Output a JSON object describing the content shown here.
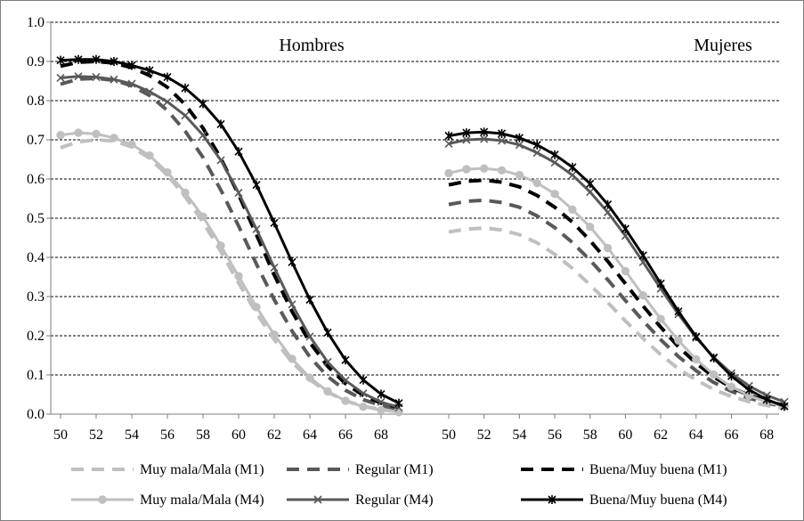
{
  "chart_data": {
    "type": "line",
    "ylim": [
      0,
      1.0
    ],
    "yticks": [
      "0.0",
      "0.1",
      "0.2",
      "0.3",
      "0.4",
      "0.5",
      "0.6",
      "0.7",
      "0.8",
      "0.9",
      "1.0"
    ],
    "grid": "horizontal-dashed",
    "legend_position": "bottom",
    "panels": [
      {
        "title": "Hombres",
        "xlim": [
          50,
          69
        ],
        "xticks": [
          "50",
          "52",
          "54",
          "56",
          "58",
          "60",
          "62",
          "64",
          "66",
          "68"
        ],
        "series": [
          {
            "name": "Muy mala/Mala (M1)",
            "color": "#bfbfbf",
            "style": "dashed",
            "marker": "none",
            "x": [
              50,
              51,
              52,
              53,
              54,
              55,
              56,
              57,
              58,
              59,
              60,
              61,
              62,
              63,
              64,
              65,
              66,
              67,
              68,
              69
            ],
            "y": [
              0.68,
              0.695,
              0.7,
              0.697,
              0.682,
              0.653,
              0.61,
              0.555,
              0.49,
              0.415,
              0.335,
              0.258,
              0.19,
              0.133,
              0.088,
              0.056,
              0.034,
              0.02,
              0.012,
              0.007
            ]
          },
          {
            "name": "Regular (M1)",
            "color": "#595959",
            "style": "dashed",
            "marker": "none",
            "x": [
              50,
              51,
              52,
              53,
              54,
              55,
              56,
              57,
              58,
              59,
              60,
              61,
              62,
              63,
              64,
              65,
              66,
              67,
              68,
              69
            ],
            "y": [
              0.842,
              0.855,
              0.857,
              0.852,
              0.838,
              0.813,
              0.775,
              0.722,
              0.655,
              0.572,
              0.48,
              0.383,
              0.292,
              0.212,
              0.146,
              0.096,
              0.061,
              0.037,
              0.022,
              0.013
            ]
          },
          {
            "name": "Buena/Muy buena (M1)",
            "color": "#000000",
            "style": "dashed",
            "marker": "none",
            "x": [
              50,
              51,
              52,
              53,
              54,
              55,
              56,
              57,
              58,
              59,
              60,
              61,
              62,
              63,
              64,
              65,
              66,
              67,
              68,
              69
            ],
            "y": [
              0.888,
              0.898,
              0.9,
              0.896,
              0.884,
              0.864,
              0.834,
              0.79,
              0.73,
              0.653,
              0.56,
              0.458,
              0.355,
              0.262,
              0.183,
              0.122,
              0.078,
              0.048,
              0.028,
              0.017
            ]
          },
          {
            "name": "Muy mala/Mala (M4)",
            "color": "#bfbfbf",
            "style": "solid",
            "marker": "circle",
            "x": [
              50,
              51,
              52,
              53,
              54,
              55,
              56,
              57,
              58,
              59,
              60,
              61,
              62,
              63,
              64,
              65,
              66,
              67,
              68,
              69
            ],
            "y": [
              0.712,
              0.718,
              0.715,
              0.705,
              0.688,
              0.66,
              0.617,
              0.565,
              0.504,
              0.43,
              0.352,
              0.273,
              0.203,
              0.141,
              0.093,
              0.058,
              0.034,
              0.019,
              0.01,
              0.005
            ]
          },
          {
            "name": "Regular (M4)",
            "color": "#595959",
            "style": "solid",
            "marker": "x",
            "x": [
              50,
              51,
              52,
              53,
              54,
              55,
              56,
              57,
              58,
              59,
              60,
              61,
              62,
              63,
              64,
              65,
              66,
              67,
              68,
              69
            ],
            "y": [
              0.858,
              0.862,
              0.86,
              0.854,
              0.843,
              0.823,
              0.797,
              0.762,
              0.712,
              0.648,
              0.565,
              0.472,
              0.374,
              0.28,
              0.198,
              0.133,
              0.086,
              0.053,
              0.031,
              0.017
            ]
          },
          {
            "name": "Buena/Muy buena (M4)",
            "color": "#000000",
            "style": "solid",
            "marker": "asterisk",
            "x": [
              50,
              51,
              52,
              53,
              54,
              55,
              56,
              57,
              58,
              59,
              60,
              61,
              62,
              63,
              64,
              65,
              66,
              67,
              68,
              69
            ],
            "y": [
              0.903,
              0.905,
              0.905,
              0.9,
              0.89,
              0.877,
              0.86,
              0.832,
              0.792,
              0.74,
              0.67,
              0.585,
              0.488,
              0.388,
              0.292,
              0.208,
              0.138,
              0.087,
              0.051,
              0.028
            ]
          }
        ]
      },
      {
        "title": "Mujeres",
        "xlim": [
          50,
          69
        ],
        "xticks": [
          "50",
          "52",
          "54",
          "56",
          "58",
          "60",
          "62",
          "64",
          "66",
          "68"
        ],
        "series": [
          {
            "name": "Muy mala/Mala (M1)",
            "color": "#bfbfbf",
            "style": "dashed",
            "marker": "none",
            "x": [
              50,
              51,
              52,
              53,
              54,
              55,
              56,
              57,
              58,
              59,
              60,
              61,
              62,
              63,
              64,
              65,
              66,
              67,
              68,
              69
            ],
            "y": [
              0.465,
              0.472,
              0.475,
              0.47,
              0.458,
              0.437,
              0.408,
              0.372,
              0.33,
              0.285,
              0.238,
              0.193,
              0.152,
              0.116,
              0.087,
              0.063,
              0.045,
              0.032,
              0.022,
              0.015
            ]
          },
          {
            "name": "Regular (M1)",
            "color": "#595959",
            "style": "dashed",
            "marker": "none",
            "x": [
              50,
              51,
              52,
              53,
              54,
              55,
              56,
              57,
              58,
              59,
              60,
              61,
              62,
              63,
              64,
              65,
              66,
              67,
              68,
              69
            ],
            "y": [
              0.535,
              0.543,
              0.546,
              0.54,
              0.528,
              0.506,
              0.476,
              0.438,
              0.393,
              0.343,
              0.29,
              0.238,
              0.19,
              0.147,
              0.111,
              0.081,
              0.058,
              0.041,
              0.028,
              0.019
            ]
          },
          {
            "name": "Buena/Muy buena (M1)",
            "color": "#000000",
            "style": "dashed",
            "marker": "none",
            "x": [
              50,
              51,
              52,
              53,
              54,
              55,
              56,
              57,
              58,
              59,
              60,
              61,
              62,
              63,
              64,
              65,
              66,
              67,
              68,
              69
            ],
            "y": [
              0.585,
              0.594,
              0.597,
              0.592,
              0.58,
              0.558,
              0.528,
              0.49,
              0.443,
              0.39,
              0.333,
              0.276,
              0.222,
              0.172,
              0.13,
              0.095,
              0.068,
              0.048,
              0.033,
              0.022
            ]
          },
          {
            "name": "Muy mala/Mala (M4)",
            "color": "#bfbfbf",
            "style": "solid",
            "marker": "circle",
            "x": [
              50,
              51,
              52,
              53,
              54,
              55,
              56,
              57,
              58,
              59,
              60,
              61,
              62,
              63,
              64,
              65,
              66,
              67,
              68,
              69
            ],
            "y": [
              0.615,
              0.625,
              0.627,
              0.622,
              0.61,
              0.59,
              0.562,
              0.522,
              0.478,
              0.424,
              0.365,
              0.303,
              0.243,
              0.188,
              0.14,
              0.101,
              0.07,
              0.047,
              0.031,
              0.019
            ]
          },
          {
            "name": "Regular (M4)",
            "color": "#595959",
            "style": "solid",
            "marker": "x",
            "x": [
              50,
              51,
              52,
              53,
              54,
              55,
              56,
              57,
              58,
              59,
              60,
              61,
              62,
              63,
              64,
              65,
              66,
              67,
              68,
              69
            ],
            "y": [
              0.69,
              0.7,
              0.702,
              0.698,
              0.687,
              0.667,
              0.642,
              0.61,
              0.567,
              0.515,
              0.455,
              0.388,
              0.32,
              0.255,
              0.195,
              0.145,
              0.104,
              0.072,
              0.048,
              0.031
            ]
          },
          {
            "name": "Buena/Muy buena (M4)",
            "color": "#000000",
            "style": "solid",
            "marker": "asterisk",
            "x": [
              50,
              51,
              52,
              53,
              54,
              55,
              56,
              57,
              58,
              59,
              60,
              61,
              62,
              63,
              64,
              65,
              66,
              67,
              68,
              69
            ],
            "y": [
              0.71,
              0.718,
              0.72,
              0.716,
              0.705,
              0.687,
              0.662,
              0.63,
              0.588,
              0.535,
              0.473,
              0.405,
              0.333,
              0.262,
              0.198,
              0.143,
              0.097,
              0.062,
              0.037,
              0.02
            ]
          }
        ]
      }
    ],
    "legend": [
      {
        "label": "Muy mala/Mala (M1)",
        "color": "#bfbfbf",
        "style": "dashed",
        "marker": "none"
      },
      {
        "label": "Regular (M1)",
        "color": "#595959",
        "style": "dashed",
        "marker": "none"
      },
      {
        "label": "Buena/Muy buena (M1)",
        "color": "#000000",
        "style": "dashed",
        "marker": "none"
      },
      {
        "label": "Muy mala/Mala (M4)",
        "color": "#bfbfbf",
        "style": "solid",
        "marker": "circle"
      },
      {
        "label": "Regular (M4)",
        "color": "#595959",
        "style": "solid",
        "marker": "x"
      },
      {
        "label": "Buena/Muy buena (M4)",
        "color": "#000000",
        "style": "solid",
        "marker": "asterisk"
      }
    ]
  }
}
